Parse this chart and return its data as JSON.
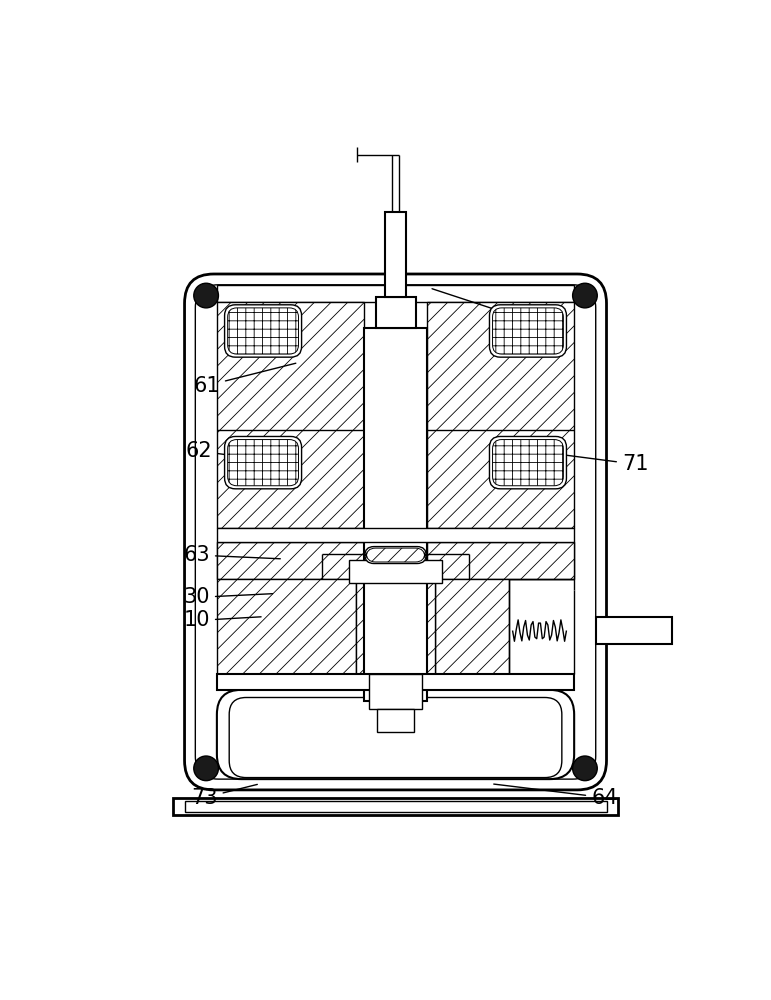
{
  "bg": "#ffffff",
  "lc": "#000000",
  "figsize": [
    7.71,
    10.0
  ],
  "dpi": 100,
  "label_fontsize": 15,
  "lw_thin": 1.0,
  "lw_med": 1.5,
  "lw_thick": 2.0
}
